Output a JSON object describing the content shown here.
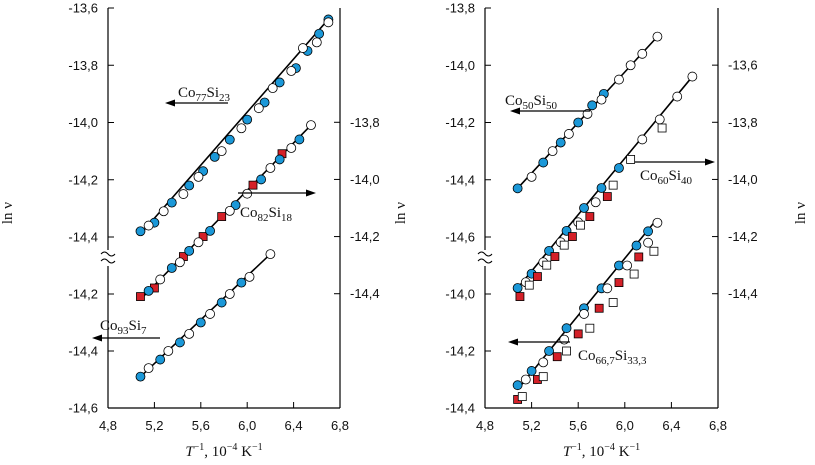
{
  "chart_data": [
    {
      "type": "scatter",
      "xlim": [
        4.8,
        6.8
      ],
      "xticks": [
        {
          "value": 4.8,
          "label": "4,8"
        },
        {
          "value": 5.2,
          "label": "5,2"
        },
        {
          "value": 5.6,
          "label": "5,6"
        },
        {
          "value": 6.0,
          "label": "6,0"
        },
        {
          "value": 6.4,
          "label": "6,4"
        },
        {
          "value": 6.8,
          "label": "6,8"
        }
      ],
      "x_label": [
        "T",
        "−1",
        ", 10",
        "−4",
        " K",
        "−1"
      ],
      "ylabel": "ln ν",
      "ylim": [
        -14.4,
        -13.6
      ],
      "yticks": [
        {
          "value": -13.6,
          "label": "-13,6"
        },
        {
          "value": -13.8,
          "label": "-13,8"
        },
        {
          "value": -14.0,
          "label": "-14,0"
        },
        {
          "value": -14.2,
          "label": "-14,2"
        },
        {
          "value": -14.4,
          "label": "-14,4"
        }
      ],
      "ylim_lower": [
        -14.6,
        -14.2
      ],
      "yticks_lower": [
        {
          "value": -14.2,
          "label": "-14,2"
        },
        {
          "value": -14.4,
          "label": "-14,4"
        },
        {
          "value": -14.6,
          "label": "-14,6"
        }
      ],
      "y2lim": [
        -14.8,
        -13.4
      ],
      "y2ticks": [
        {
          "value": -13.8,
          "label": "-13,8"
        },
        {
          "value": -14.0,
          "label": "-14,0"
        },
        {
          "value": -14.2,
          "label": "-14,2"
        },
        {
          "value": -14.4,
          "label": "-14,4"
        }
      ],
      "series": [
        {
          "label": [
            "Co",
            "77",
            "Si",
            "23"
          ],
          "axis": "y",
          "fit": {
            "x": [
              5.08,
              6.72
            ],
            "values": [
              -14.39,
              -13.63
            ]
          },
          "groups": [
            {
              "marker": "circle",
              "color": "#1b98d8",
              "x": [
                5.08,
                5.2,
                5.35,
                5.5,
                5.62,
                5.72,
                5.85,
                6.0,
                6.15,
                6.28,
                6.42,
                6.52,
                6.62,
                6.7
              ],
              "values": [
                -14.38,
                -14.35,
                -14.28,
                -14.22,
                -14.17,
                -14.12,
                -14.06,
                -13.99,
                -13.93,
                -13.86,
                -13.81,
                -13.75,
                -13.69,
                -13.64
              ]
            },
            {
              "marker": "circle",
              "color": "#ffffff",
              "x": [
                5.15,
                5.28,
                5.45,
                5.58,
                5.78,
                5.95,
                6.1,
                6.22,
                6.38,
                6.48,
                6.6,
                6.7
              ],
              "values": [
                -14.36,
                -14.31,
                -14.25,
                -14.19,
                -14.1,
                -14.02,
                -13.95,
                -13.88,
                -13.82,
                -13.74,
                -13.72,
                -13.65
              ]
            }
          ]
        },
        {
          "label": [
            "Co",
            "82",
            "Si",
            "18"
          ],
          "axis": "y2",
          "fit": {
            "x": [
              5.08,
              6.55
            ],
            "values": [
              -14.42,
              -13.81
            ]
          },
          "groups": [
            {
              "marker": "square",
              "color": "#d42028",
              "x": [
                5.08,
                5.2,
                5.45,
                5.62,
                5.78,
                6.05,
                6.3
              ],
              "values": [
                -14.41,
                -14.38,
                -14.27,
                -14.2,
                -14.13,
                -14.02,
                -13.91
              ]
            },
            {
              "marker": "circle",
              "color": "#1b98d8",
              "x": [
                5.15,
                5.35,
                5.5,
                5.68,
                5.9,
                6.12,
                6.28,
                6.45
              ],
              "values": [
                -14.39,
                -14.31,
                -14.25,
                -14.18,
                -14.09,
                -14.0,
                -13.93,
                -13.86
              ]
            },
            {
              "marker": "circle",
              "color": "#ffffff",
              "x": [
                5.25,
                5.42,
                5.58,
                5.85,
                6.0,
                6.2,
                6.38,
                6.55
              ],
              "values": [
                -14.35,
                -14.29,
                -14.22,
                -14.11,
                -14.05,
                -13.96,
                -13.89,
                -13.81
              ]
            }
          ]
        },
        {
          "label": [
            "Co",
            "93",
            "Si",
            "7"
          ],
          "axis": "y_lower",
          "fit": {
            "x": [
              5.08,
              6.2
            ],
            "values": [
              -14.49,
              -14.06
            ]
          },
          "groups": [
            {
              "marker": "circle",
              "color": "#1b98d8",
              "x": [
                5.08,
                5.25,
                5.42,
                5.6,
                5.78,
                5.95
              ],
              "values": [
                -14.49,
                -14.43,
                -14.37,
                -14.3,
                -14.23,
                -14.16
              ]
            },
            {
              "marker": "circle",
              "color": "#ffffff",
              "x": [
                5.15,
                5.32,
                5.5,
                5.68,
                5.85,
                6.02,
                6.2
              ],
              "values": [
                -14.46,
                -14.4,
                -14.34,
                -14.27,
                -14.2,
                -14.14,
                -14.06
              ]
            }
          ]
        }
      ]
    },
    {
      "type": "scatter",
      "xlim": [
        4.8,
        6.8
      ],
      "xticks": [
        {
          "value": 4.8,
          "label": "4,8"
        },
        {
          "value": 5.2,
          "label": "5,2"
        },
        {
          "value": 5.6,
          "label": "5,6"
        },
        {
          "value": 6.0,
          "label": "6,0"
        },
        {
          "value": 6.4,
          "label": "6,4"
        },
        {
          "value": 6.8,
          "label": "6,8"
        }
      ],
      "x_label": [
        "T",
        "−1",
        ", 10",
        "−4",
        " K",
        "−1"
      ],
      "ylabel": "ln ν",
      "ylim": [
        -14.6,
        -13.8
      ],
      "yticks": [
        {
          "value": -13.8,
          "label": "-13,8"
        },
        {
          "value": -14.0,
          "label": "-14,0"
        },
        {
          "value": -14.2,
          "label": "-14,2"
        },
        {
          "value": -14.4,
          "label": "-14,4"
        },
        {
          "value": -14.6,
          "label": "-14,6"
        }
      ],
      "ylim_lower": [
        -14.4,
        -14.0
      ],
      "yticks_lower": [
        {
          "value": -14.0,
          "label": "-14,0"
        },
        {
          "value": -14.2,
          "label": "-14,2"
        },
        {
          "value": -14.4,
          "label": "-14,4"
        }
      ],
      "y2lim": [
        -14.8,
        -13.4
      ],
      "y2ticks": [
        {
          "value": -13.6,
          "label": "-13,6"
        },
        {
          "value": -13.8,
          "label": "-13,8"
        },
        {
          "value": -14.0,
          "label": "-14,0"
        },
        {
          "value": -14.2,
          "label": "-14,2"
        },
        {
          "value": -14.4,
          "label": "-14,4"
        }
      ],
      "series": [
        {
          "label": [
            "Co",
            "50",
            "Si",
            "50"
          ],
          "axis": "y",
          "fit": {
            "x": [
              5.08,
              6.28
            ],
            "values": [
              -14.43,
              -13.9
            ]
          },
          "groups": [
            {
              "marker": "circle",
              "color": "#1b98d8",
              "x": [
                5.08,
                5.3,
                5.45,
                5.6,
                5.72,
                5.82
              ],
              "values": [
                -14.43,
                -14.34,
                -14.27,
                -14.2,
                -14.14,
                -14.1
              ]
            },
            {
              "marker": "circle",
              "color": "#ffffff",
              "x": [
                5.2,
                5.38,
                5.52,
                5.68,
                5.8,
                5.95,
                6.05,
                6.15,
                6.28
              ],
              "values": [
                -14.39,
                -14.3,
                -14.24,
                -14.17,
                -14.12,
                -14.05,
                -14.0,
                -13.96,
                -13.9
              ]
            }
          ]
        },
        {
          "label": [
            "Co",
            "60",
            "Si",
            "40"
          ],
          "axis": "y2",
          "fit": {
            "x": [
              5.08,
              6.58
            ],
            "values": [
              -14.38,
              -13.64
            ]
          },
          "groups": [
            {
              "marker": "circle",
              "color": "#1b98d8",
              "x": [
                5.08,
                5.2,
                5.35,
                5.5,
                5.65,
                5.8,
                5.95
              ],
              "values": [
                -14.38,
                -14.33,
                -14.25,
                -14.18,
                -14.1,
                -14.03,
                -13.96
              ]
            },
            {
              "marker": "square",
              "color": "#d42028",
              "x": [
                5.1,
                5.25,
                5.4,
                5.55,
                5.7,
                5.85
              ],
              "values": [
                -14.41,
                -14.34,
                -14.27,
                -14.2,
                -14.13,
                -14.06
              ]
            },
            {
              "marker": "circle",
              "color": "#ffffff",
              "x": [
                5.15,
                5.3,
                5.45,
                5.6,
                5.75,
                6.15,
                6.3,
                6.45,
                6.58
              ],
              "values": [
                -14.36,
                -14.29,
                -14.22,
                -14.15,
                -14.08,
                -13.86,
                -13.79,
                -13.71,
                -13.64
              ]
            },
            {
              "marker": "square",
              "color": "#ffffff",
              "x": [
                5.18,
                5.33,
                5.48,
                5.62,
                5.9,
                6.05,
                6.32
              ],
              "values": [
                -14.37,
                -14.3,
                -14.23,
                -14.16,
                -14.02,
                -13.93,
                -13.82
              ]
            }
          ]
        },
        {
          "label": [
            "Co",
            "66,7",
            "Si",
            "33,3"
          ],
          "axis": "y_lower",
          "fit": {
            "x": [
              5.08,
              6.28
            ],
            "values": [
              -14.335,
              -13.735
            ]
          },
          "groups": [
            {
              "marker": "circle",
              "color": "#1b98d8",
              "x": [
                5.08,
                5.2,
                5.35,
                5.5,
                5.65,
                5.8,
                5.95,
                6.1,
                6.2
              ],
              "values": [
                -14.32,
                -14.27,
                -14.2,
                -14.12,
                -14.05,
                -13.98,
                -13.9,
                -13.83,
                -13.78
              ]
            },
            {
              "marker": "square",
              "color": "#d42028",
              "x": [
                5.08,
                5.25,
                5.42,
                5.6,
                5.78,
                5.95,
                6.12
              ],
              "values": [
                -14.37,
                -14.3,
                -14.22,
                -14.14,
                -14.05,
                -13.96,
                -13.87
              ]
            },
            {
              "marker": "circle",
              "color": "#ffffff",
              "x": [
                5.15,
                5.3,
                5.48,
                5.65,
                5.85,
                6.02,
                6.2,
                6.28
              ],
              "values": [
                -14.3,
                -14.24,
                -14.16,
                -14.07,
                -13.98,
                -13.9,
                -13.82,
                -13.75
              ]
            },
            {
              "marker": "square",
              "color": "#ffffff",
              "x": [
                5.12,
                5.3,
                5.5,
                5.7,
                5.9,
                6.08,
                6.25
              ],
              "values": [
                -14.36,
                -14.29,
                -14.2,
                -14.12,
                -14.03,
                -13.93,
                -13.85
              ]
            }
          ]
        }
      ]
    }
  ]
}
